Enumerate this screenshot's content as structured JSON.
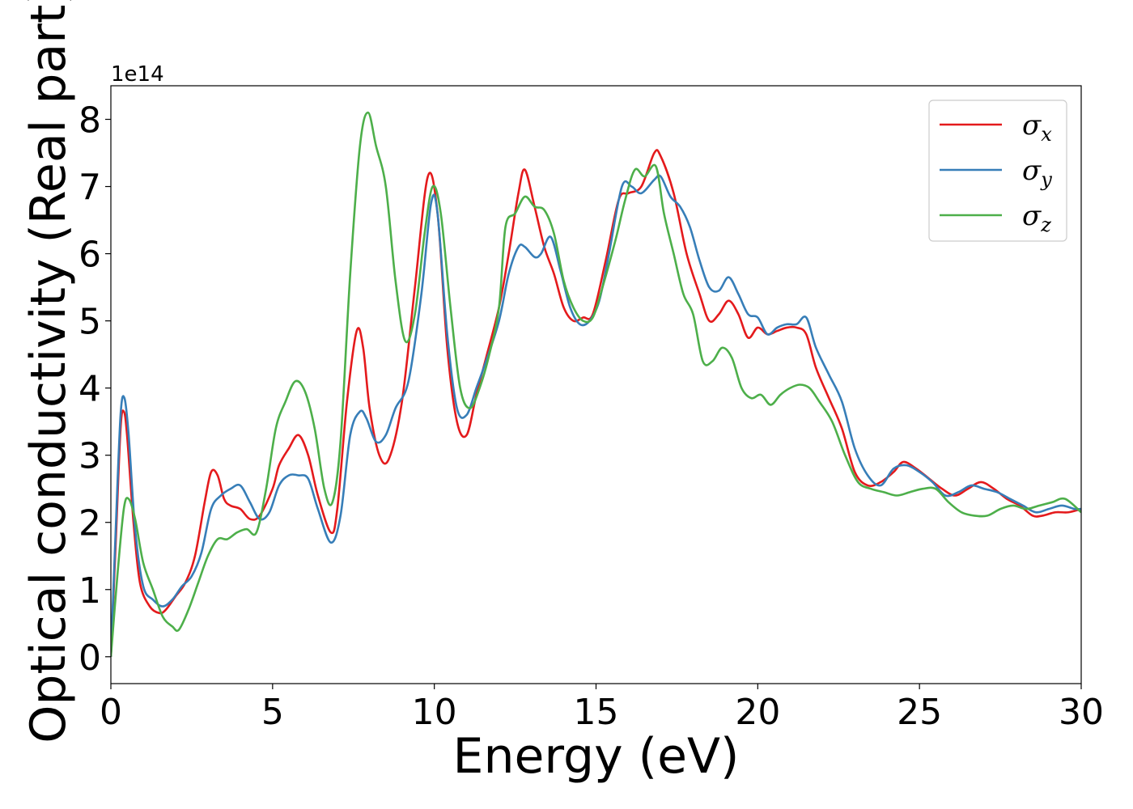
{
  "chart_data": {
    "type": "line",
    "xlabel": "Energy (eV)",
    "ylabel": "Optical conductivity (Real part)",
    "y_offset_label": "1e14",
    "xlim": [
      0,
      30
    ],
    "ylim": [
      -0.4,
      8.5
    ],
    "x_ticks": [
      0,
      5,
      10,
      15,
      20,
      25,
      30
    ],
    "y_ticks": [
      0,
      1,
      2,
      3,
      4,
      5,
      6,
      7,
      8
    ],
    "x_tick_labels": [
      "0",
      "5",
      "10",
      "15",
      "20",
      "25",
      "30"
    ],
    "y_tick_labels": [
      "0",
      "1",
      "2",
      "3",
      "4",
      "5",
      "6",
      "7",
      "8"
    ],
    "grid": false,
    "legend_position": "top-right",
    "series": [
      {
        "name": "σx",
        "symbol": "σ",
        "subscript": "x",
        "color": "#e41a1c",
        "x": [
          0,
          0.15,
          0.3,
          0.4,
          0.5,
          0.7,
          0.9,
          1.2,
          1.5,
          1.7,
          2.0,
          2.3,
          2.6,
          2.9,
          3.1,
          3.3,
          3.5,
          3.7,
          4.0,
          4.3,
          4.6,
          5.0,
          5.2,
          5.5,
          5.8,
          6.1,
          6.4,
          6.8,
          7.0,
          7.3,
          7.6,
          7.8,
          8.0,
          8.3,
          8.6,
          9.0,
          9.4,
          9.8,
          10.1,
          10.4,
          10.7,
          11.0,
          11.3,
          11.6,
          12.0,
          12.3,
          12.6,
          12.8,
          13.1,
          13.4,
          13.7,
          14.0,
          14.3,
          14.6,
          14.9,
          15.3,
          15.7,
          16.0,
          16.4,
          16.8,
          17.0,
          17.4,
          17.8,
          18.2,
          18.5,
          18.8,
          19.1,
          19.4,
          19.7,
          20.0,
          20.3,
          20.6,
          20.9,
          21.2,
          21.5,
          21.8,
          22.2,
          22.6,
          23.0,
          23.4,
          23.8,
          24.2,
          24.5,
          24.9,
          25.3,
          25.7,
          26.1,
          26.5,
          26.9,
          27.3,
          27.7,
          28.1,
          28.5,
          28.8,
          29.2,
          29.6,
          30.0
        ],
        "y": [
          0,
          1.7,
          3.4,
          3.65,
          3.3,
          2.0,
          1.1,
          0.75,
          0.65,
          0.7,
          0.9,
          1.1,
          1.5,
          2.3,
          2.75,
          2.7,
          2.35,
          2.25,
          2.2,
          2.05,
          2.1,
          2.5,
          2.85,
          3.1,
          3.3,
          3.0,
          2.4,
          1.85,
          2.2,
          3.8,
          4.85,
          4.6,
          3.7,
          3.0,
          2.95,
          3.8,
          5.5,
          7.15,
          6.6,
          4.6,
          3.5,
          3.3,
          3.9,
          4.45,
          5.2,
          6.0,
          6.9,
          7.25,
          6.7,
          6.1,
          5.7,
          5.2,
          5.0,
          5.05,
          5.1,
          5.9,
          6.8,
          6.9,
          7.0,
          7.5,
          7.45,
          6.9,
          6.0,
          5.4,
          5.0,
          5.1,
          5.3,
          5.1,
          4.75,
          4.9,
          4.8,
          4.85,
          4.9,
          4.9,
          4.8,
          4.3,
          3.85,
          3.4,
          2.75,
          2.55,
          2.6,
          2.75,
          2.9,
          2.8,
          2.65,
          2.5,
          2.4,
          2.5,
          2.6,
          2.5,
          2.35,
          2.25,
          2.1,
          2.1,
          2.15,
          2.15,
          2.2
        ]
      },
      {
        "name": "σy",
        "symbol": "σ",
        "subscript": "y",
        "color": "#377eb8",
        "x": [
          0,
          0.15,
          0.3,
          0.42,
          0.55,
          0.75,
          1.0,
          1.3,
          1.6,
          1.9,
          2.2,
          2.5,
          2.8,
          3.1,
          3.4,
          3.7,
          4.0,
          4.3,
          4.6,
          4.9,
          5.2,
          5.5,
          5.8,
          6.1,
          6.4,
          6.8,
          7.1,
          7.4,
          7.7,
          7.9,
          8.2,
          8.5,
          8.8,
          9.2,
          9.6,
          9.9,
          10.1,
          10.4,
          10.7,
          11.0,
          11.3,
          11.6,
          12.0,
          12.3,
          12.6,
          12.8,
          13.1,
          13.3,
          13.6,
          13.9,
          14.2,
          14.5,
          14.8,
          15.1,
          15.4,
          15.8,
          16.1,
          16.4,
          16.8,
          17.0,
          17.3,
          17.6,
          17.9,
          18.2,
          18.5,
          18.8,
          19.1,
          19.4,
          19.7,
          20.0,
          20.3,
          20.6,
          20.9,
          21.2,
          21.5,
          21.8,
          22.2,
          22.6,
          23.0,
          23.4,
          23.8,
          24.2,
          24.6,
          25.0,
          25.4,
          25.8,
          26.2,
          26.6,
          27.0,
          27.4,
          27.8,
          28.2,
          28.6,
          29.0,
          29.4,
          29.8,
          30.0
        ],
        "y": [
          0,
          1.9,
          3.6,
          3.85,
          3.3,
          1.9,
          1.05,
          0.85,
          0.75,
          0.85,
          1.05,
          1.2,
          1.55,
          2.2,
          2.4,
          2.5,
          2.55,
          2.3,
          2.05,
          2.15,
          2.55,
          2.7,
          2.7,
          2.65,
          2.2,
          1.7,
          2.1,
          3.3,
          3.65,
          3.55,
          3.2,
          3.3,
          3.7,
          4.1,
          5.4,
          6.75,
          6.6,
          4.8,
          3.7,
          3.6,
          4.0,
          4.4,
          5.0,
          5.7,
          6.1,
          6.1,
          5.95,
          6.0,
          6.25,
          5.75,
          5.2,
          4.95,
          5.0,
          5.3,
          6.0,
          7.0,
          7.0,
          6.9,
          7.1,
          7.15,
          6.85,
          6.7,
          6.4,
          5.9,
          5.5,
          5.45,
          5.65,
          5.4,
          5.1,
          5.05,
          4.8,
          4.9,
          4.95,
          4.95,
          5.05,
          4.6,
          4.2,
          3.8,
          3.1,
          2.7,
          2.55,
          2.8,
          2.85,
          2.75,
          2.6,
          2.4,
          2.45,
          2.55,
          2.5,
          2.45,
          2.35,
          2.25,
          2.15,
          2.2,
          2.25,
          2.2,
          2.2
        ]
      },
      {
        "name": "σz",
        "symbol": "σ",
        "subscript": "z",
        "color": "#4daf4a",
        "x": [
          0,
          0.2,
          0.4,
          0.55,
          0.75,
          1.0,
          1.3,
          1.6,
          1.9,
          2.1,
          2.4,
          2.7,
          3.0,
          3.3,
          3.6,
          3.9,
          4.2,
          4.5,
          4.8,
          5.1,
          5.4,
          5.7,
          6.0,
          6.3,
          6.6,
          6.85,
          7.1,
          7.4,
          7.7,
          7.95,
          8.2,
          8.5,
          8.8,
          9.1,
          9.4,
          9.7,
          9.95,
          10.2,
          10.5,
          10.8,
          11.1,
          11.4,
          11.7,
          12.0,
          12.2,
          12.5,
          12.8,
          13.1,
          13.4,
          13.7,
          14.0,
          14.3,
          14.6,
          14.9,
          15.2,
          15.6,
          15.9,
          16.2,
          16.5,
          16.85,
          17.1,
          17.4,
          17.7,
          18.0,
          18.3,
          18.6,
          18.9,
          19.2,
          19.5,
          19.8,
          20.1,
          20.4,
          20.7,
          21.0,
          21.3,
          21.6,
          21.9,
          22.3,
          22.7,
          23.1,
          23.5,
          23.9,
          24.3,
          24.7,
          25.1,
          25.5,
          25.9,
          26.3,
          26.7,
          27.1,
          27.5,
          27.9,
          28.3,
          28.7,
          29.1,
          29.5,
          30.0
        ],
        "y": [
          0,
          1.2,
          2.2,
          2.35,
          2.05,
          1.4,
          1.0,
          0.6,
          0.45,
          0.4,
          0.7,
          1.1,
          1.5,
          1.75,
          1.75,
          1.85,
          1.9,
          1.85,
          2.5,
          3.4,
          3.8,
          4.1,
          3.95,
          3.4,
          2.5,
          2.3,
          3.2,
          5.7,
          7.6,
          8.1,
          7.6,
          7.0,
          5.6,
          4.7,
          5.1,
          6.3,
          7.0,
          6.6,
          5.2,
          4.0,
          3.7,
          4.0,
          4.5,
          5.2,
          6.4,
          6.6,
          6.85,
          6.7,
          6.65,
          6.3,
          5.6,
          5.2,
          5.0,
          5.05,
          5.5,
          6.2,
          6.8,
          7.25,
          7.15,
          7.3,
          6.6,
          6.0,
          5.4,
          5.1,
          4.4,
          4.4,
          4.6,
          4.45,
          4.0,
          3.85,
          3.9,
          3.75,
          3.9,
          4.0,
          4.05,
          4.0,
          3.8,
          3.5,
          3.0,
          2.6,
          2.5,
          2.45,
          2.4,
          2.45,
          2.5,
          2.5,
          2.3,
          2.15,
          2.1,
          2.1,
          2.2,
          2.25,
          2.2,
          2.25,
          2.3,
          2.35,
          2.15
        ]
      }
    ]
  }
}
